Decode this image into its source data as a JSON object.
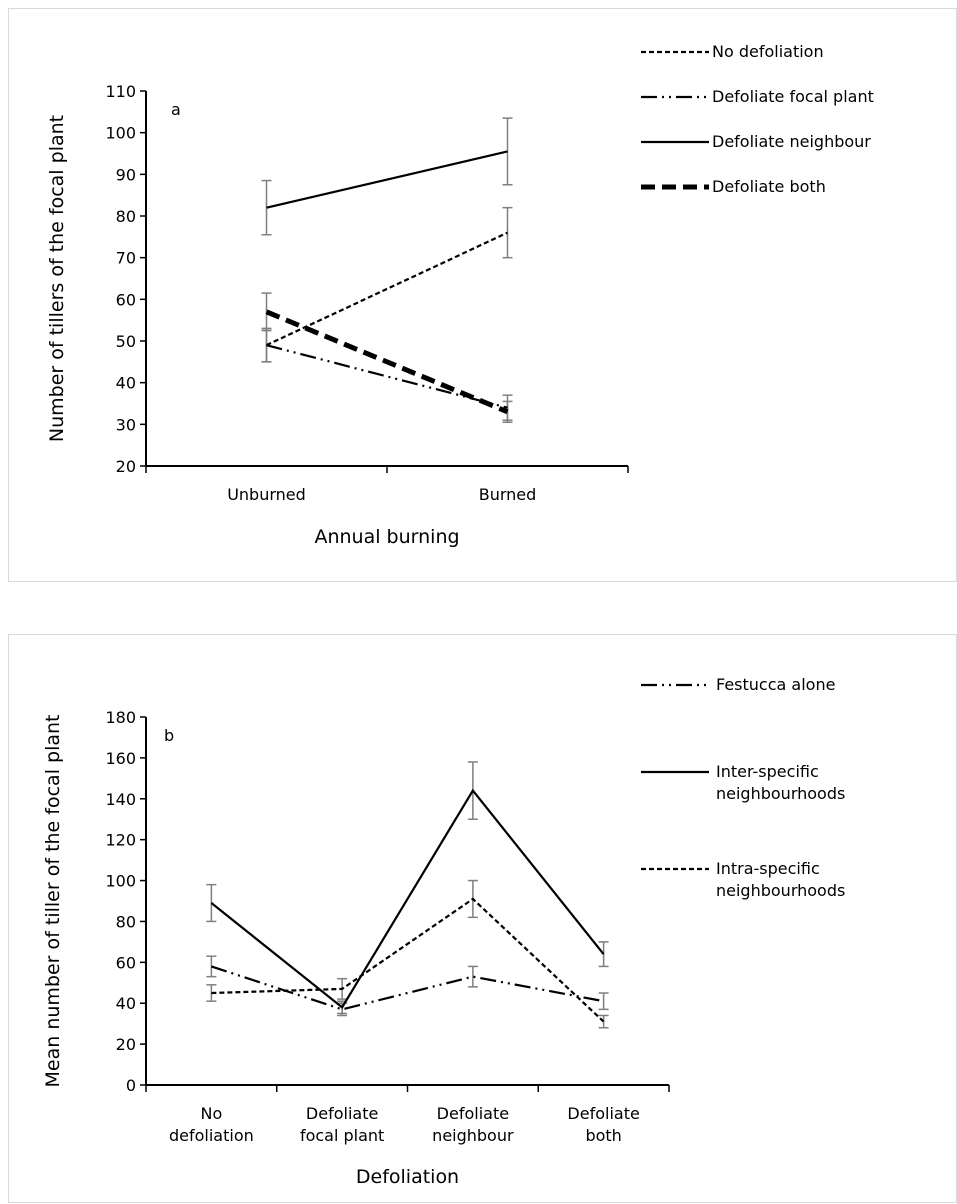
{
  "chart_data": [
    {
      "type": "line",
      "panel_label": "a",
      "xlabel": "Annual burning",
      "ylabel": "Number of tillers of the focal plant",
      "categories": [
        "Unburned",
        "Burned"
      ],
      "ylim": [
        20,
        110
      ],
      "yticks": [
        20,
        30,
        40,
        50,
        60,
        70,
        80,
        90,
        100,
        110
      ],
      "grid": false,
      "legend_position": "top-right",
      "series": [
        {
          "name": "No defoliation",
          "style": "short-dash",
          "values": [
            49,
            76
          ],
          "errors": [
            4,
            6
          ]
        },
        {
          "name": "Defoliate focal plant",
          "style": "long-dash-dot-dot",
          "values": [
            49,
            34
          ],
          "errors": [
            4,
            3
          ]
        },
        {
          "name": "Defoliate neighbour",
          "style": "solid",
          "values": [
            82,
            95.5
          ],
          "errors": [
            6.5,
            8
          ]
        },
        {
          "name": "Defoliate both",
          "style": "thick-dash",
          "values": [
            57,
            33
          ],
          "errors": [
            4.5,
            2.5
          ]
        }
      ]
    },
    {
      "type": "line",
      "panel_label": "b",
      "xlabel": "Defoliation",
      "ylabel": "Mean number of tiller of the focal plant",
      "categories": [
        "No defoliation",
        "Defoliate focal plant",
        "Defoliate neighbour",
        "Defoliate both"
      ],
      "category_lines": [
        [
          "No",
          "defoliation"
        ],
        [
          "Defoliate",
          "focal plant"
        ],
        [
          "Defoliate",
          "neighbour"
        ],
        [
          "Defoliate",
          "both"
        ]
      ],
      "ylim": [
        0,
        180
      ],
      "yticks": [
        0,
        20,
        40,
        60,
        80,
        100,
        120,
        140,
        160,
        180
      ],
      "grid": false,
      "legend_position": "top-right",
      "series": [
        {
          "name": "Festucca alone",
          "name_lines": [
            "Festucca alone"
          ],
          "style": "long-dash-dot-dot",
          "values": [
            58,
            37,
            53,
            41
          ],
          "errors": [
            5,
            3,
            5,
            4
          ]
        },
        {
          "name": "Inter-specific neighbourhoods",
          "name_lines": [
            "Inter-specific",
            "neighbourhoods"
          ],
          "style": "solid",
          "values": [
            89,
            38,
            144,
            64
          ],
          "errors": [
            9,
            3,
            14,
            6
          ]
        },
        {
          "name": "Intra-specific neighbourhoods",
          "name_lines": [
            "Intra-specific",
            "neighbourhoods"
          ],
          "style": "short-dash",
          "values": [
            45,
            47,
            91,
            31
          ],
          "errors": [
            4,
            5,
            9,
            3
          ]
        }
      ]
    }
  ]
}
